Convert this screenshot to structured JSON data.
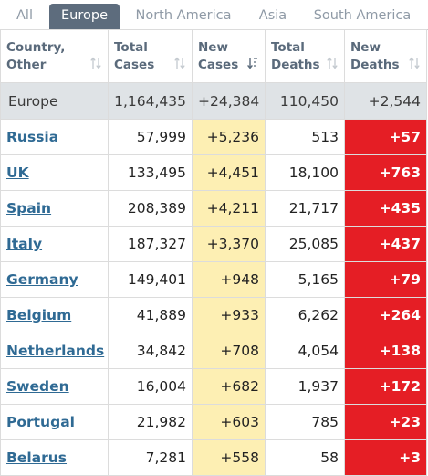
{
  "tabs": [
    {
      "label": "All",
      "active": false
    },
    {
      "label": "Europe",
      "active": true
    },
    {
      "label": "North America",
      "active": false
    },
    {
      "label": "Asia",
      "active": false
    },
    {
      "label": "South America",
      "active": false
    }
  ],
  "columns": [
    {
      "line1": "Country,",
      "line2": "Other"
    },
    {
      "line1": "Total",
      "line2": "Cases"
    },
    {
      "line1": "New",
      "line2": "Cases"
    },
    {
      "line1": "Total",
      "line2": "Deaths"
    },
    {
      "line1": "New",
      "line2": "Deaths"
    }
  ],
  "total_row": {
    "name": "Europe",
    "total_cases": "1,164,435",
    "new_cases": "+24,384",
    "total_deaths": "110,450",
    "new_deaths": "+2,544"
  },
  "rows": [
    {
      "country": "Russia",
      "total_cases": "57,999",
      "new_cases": "+5,236",
      "total_deaths": "513",
      "new_deaths": "+57"
    },
    {
      "country": "UK",
      "total_cases": "133,495",
      "new_cases": "+4,451",
      "total_deaths": "18,100",
      "new_deaths": "+763"
    },
    {
      "country": "Spain",
      "total_cases": "208,389",
      "new_cases": "+4,211",
      "total_deaths": "21,717",
      "new_deaths": "+435"
    },
    {
      "country": "Italy",
      "total_cases": "187,327",
      "new_cases": "+3,370",
      "total_deaths": "25,085",
      "new_deaths": "+437"
    },
    {
      "country": "Germany",
      "total_cases": "149,401",
      "new_cases": "+948",
      "total_deaths": "5,165",
      "new_deaths": "+79"
    },
    {
      "country": "Belgium",
      "total_cases": "41,889",
      "new_cases": "+933",
      "total_deaths": "6,262",
      "new_deaths": "+264"
    },
    {
      "country": "Netherlands",
      "total_cases": "34,842",
      "new_cases": "+708",
      "total_deaths": "4,054",
      "new_deaths": "+138"
    },
    {
      "country": "Sweden",
      "total_cases": "16,004",
      "new_cases": "+682",
      "total_deaths": "1,937",
      "new_deaths": "+172"
    },
    {
      "country": "Portugal",
      "total_cases": "21,982",
      "new_cases": "+603",
      "total_deaths": "785",
      "new_deaths": "+23"
    },
    {
      "country": "Belarus",
      "total_cases": "7,281",
      "new_cases": "+558",
      "total_deaths": "58",
      "new_deaths": "+3"
    }
  ],
  "colors": {
    "active_tab": "#5d6c7d",
    "new_cases_highlight": "#fdefb3",
    "new_deaths_highlight": "#e51e25",
    "total_row_bg": "#dfe3e6",
    "link": "#2f6a94"
  },
  "icons": {
    "sort_default": "sort-arrows-icon",
    "sort_active": "sort-descending-icon"
  }
}
